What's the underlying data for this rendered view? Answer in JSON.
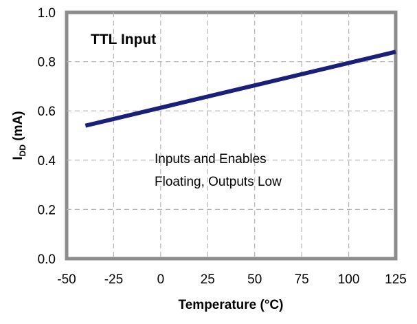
{
  "chart_data": {
    "type": "line",
    "title": "TTL Input",
    "annotation_lines": [
      "Inputs and Enables",
      "Floating, Outputs Low"
    ],
    "xlabel": "Temperature (°C)",
    "ylabel_main": "I",
    "ylabel_sub": "DD",
    "ylabel_unit": " (mA)",
    "xlim": [
      -50,
      125
    ],
    "ylim": [
      0.0,
      1.0
    ],
    "x_ticks": [
      -50,
      -25,
      0,
      25,
      50,
      75,
      100,
      125
    ],
    "y_ticks": [
      0.0,
      0.2,
      0.4,
      0.6,
      0.8,
      1.0
    ],
    "x_tick_labels": [
      "-50",
      "-25",
      "0",
      "25",
      "50",
      "75",
      "100",
      "125"
    ],
    "y_tick_labels": [
      "0.0",
      "0.2",
      "0.4",
      "0.6",
      "0.8",
      "1.0"
    ],
    "grid": true,
    "series": [
      {
        "color": "#1a1f7a",
        "x": [
          -40,
          125
        ],
        "y": [
          0.54,
          0.84
        ]
      }
    ]
  }
}
